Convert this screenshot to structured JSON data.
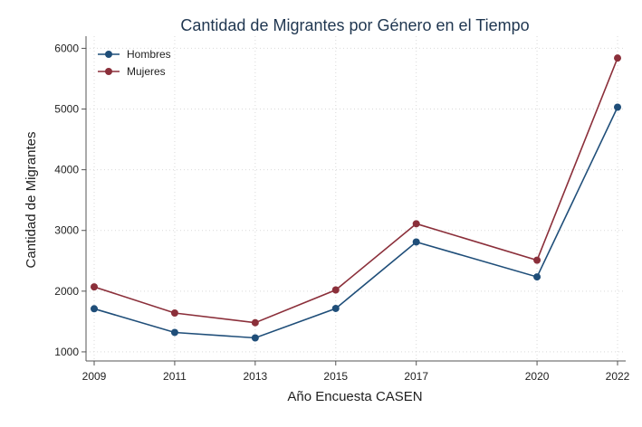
{
  "chart_data": {
    "type": "line",
    "title": "Cantidad de Migrantes por Género en el Tiempo",
    "xlabel": "Año Encuesta CASEN",
    "ylabel": "Cantidad de Migrantes",
    "x": [
      2009,
      2011,
      2013,
      2015,
      2017,
      2020,
      2022
    ],
    "xticks": [
      "2009",
      "2011",
      "2013",
      "2015",
      "2017",
      "2020",
      "2022"
    ],
    "yticks": [
      1000,
      2000,
      3000,
      4000,
      5000,
      6000
    ],
    "xlim": [
      2009,
      2022
    ],
    "ylim": [
      850,
      6200
    ],
    "grid": true,
    "legend_position": "top-left",
    "series": [
      {
        "name": "Hombres",
        "color": "#1f4e79",
        "values": [
          1710,
          1320,
          1230,
          1715,
          2810,
          2235,
          5030
        ]
      },
      {
        "name": "Mujeres",
        "color": "#8b2f3a",
        "values": [
          2070,
          1640,
          1480,
          2020,
          3110,
          2510,
          5840
        ]
      }
    ]
  }
}
